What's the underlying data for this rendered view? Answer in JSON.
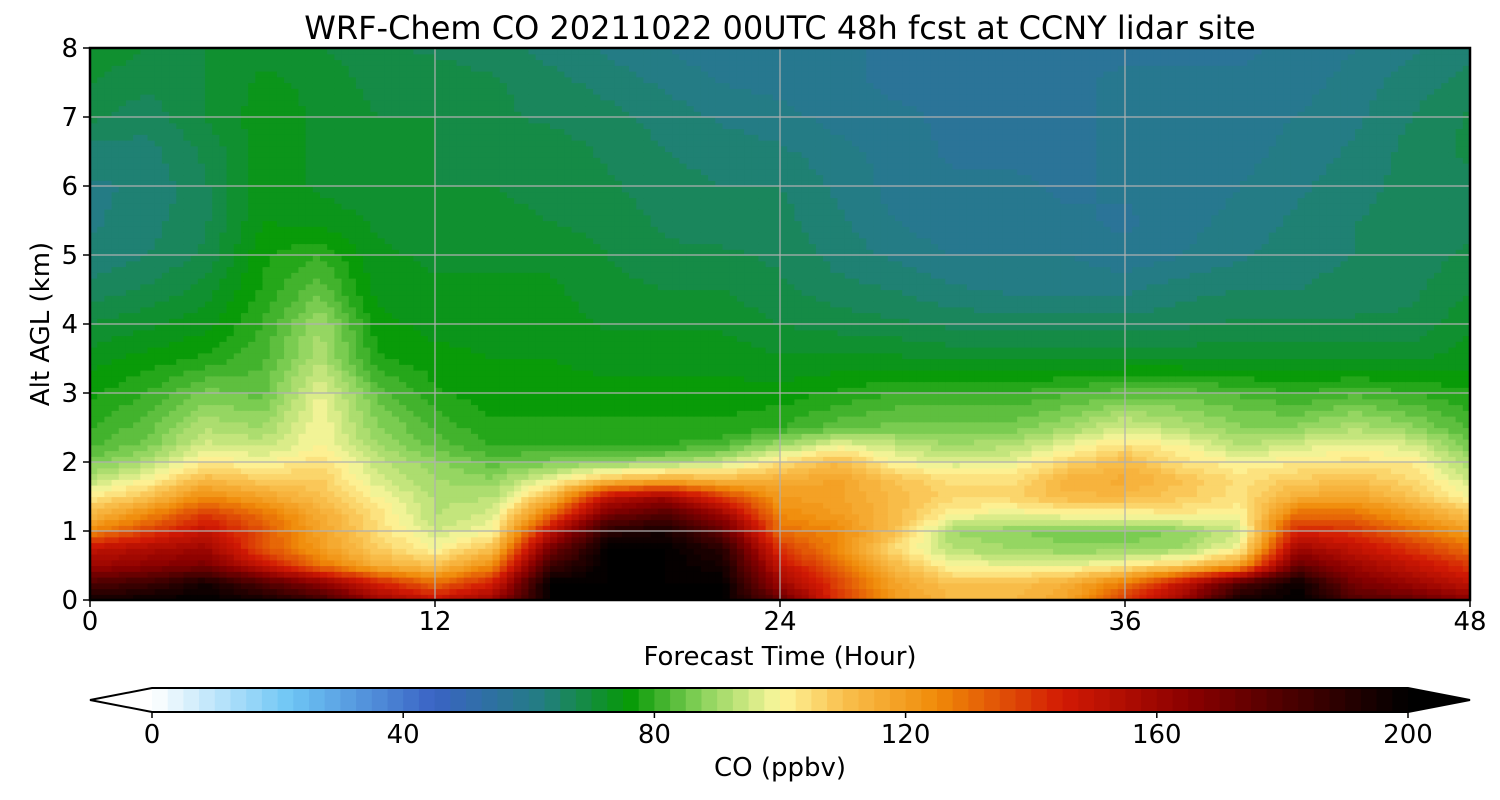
{
  "chart_data": {
    "type": "heatmap",
    "title": "WRF-Chem CO  20211022 00UTC 48h fcst at CCNY lidar site",
    "xlabel": "Forecast Time (Hour)",
    "ylabel": "Alt AGL (km)",
    "xlim": [
      0,
      48
    ],
    "ylim": [
      0,
      8
    ],
    "xticks": [
      0,
      12,
      24,
      36,
      48
    ],
    "yticks": [
      0,
      1,
      2,
      3,
      4,
      5,
      6,
      7,
      8
    ],
    "grid": true,
    "colorbar": {
      "label": "CO  (ppbv)",
      "min": 0,
      "max": 200,
      "ticks": [
        0,
        40,
        80,
        120,
        160,
        200
      ],
      "extend": "both",
      "orientation": "horizontal",
      "placement": "bottom",
      "color_stops": [
        {
          "value": 0,
          "color": "#ffffff"
        },
        {
          "value": 22,
          "color": "#6ec6f5"
        },
        {
          "value": 45,
          "color": "#3a63c4"
        },
        {
          "value": 62,
          "color": "#237d82"
        },
        {
          "value": 76,
          "color": "#069a06"
        },
        {
          "value": 88,
          "color": "#8ed45e"
        },
        {
          "value": 100,
          "color": "#fdf79c"
        },
        {
          "value": 110,
          "color": "#f9c04e"
        },
        {
          "value": 125,
          "color": "#f08a08"
        },
        {
          "value": 145,
          "color": "#d21a04"
        },
        {
          "value": 165,
          "color": "#8b0000"
        },
        {
          "value": 200,
          "color": "#000000"
        }
      ]
    },
    "grid_data": {
      "x": [
        0,
        2,
        4,
        6,
        8,
        10,
        12,
        14,
        16,
        18,
        20,
        22,
        24,
        26,
        28,
        30,
        32,
        34,
        36,
        38,
        40,
        42,
        44,
        46,
        48
      ],
      "y": [
        0,
        0.25,
        0.5,
        0.75,
        1,
        1.25,
        1.5,
        1.75,
        2,
        2.25,
        2.5,
        3,
        3.5,
        4,
        4.5,
        5,
        5.5,
        6,
        6.5,
        7,
        7.5,
        8
      ],
      "values": [
        [
          195,
          198,
          200,
          195,
          185,
          160,
          150,
          160,
          200,
          200,
          200,
          200,
          175,
          140,
          120,
          112,
          112,
          118,
          140,
          160,
          195,
          200,
          180,
          175,
          165
        ],
        [
          180,
          185,
          195,
          180,
          165,
          145,
          130,
          145,
          200,
          200,
          200,
          200,
          160,
          138,
          118,
          110,
          110,
          115,
          128,
          150,
          180,
          198,
          170,
          160,
          150
        ],
        [
          160,
          165,
          170,
          150,
          130,
          115,
          110,
          125,
          185,
          200,
          200,
          195,
          150,
          130,
          112,
          100,
          98,
          98,
          102,
          108,
          120,
          175,
          160,
          150,
          140
        ],
        [
          150,
          155,
          160,
          135,
          120,
          108,
          100,
          110,
          170,
          200,
          200,
          190,
          140,
          125,
          105,
          92,
          90,
          88,
          88,
          90,
          100,
          160,
          150,
          140,
          130
        ],
        [
          125,
          138,
          150,
          135,
          118,
          105,
          95,
          100,
          150,
          190,
          195,
          175,
          130,
          125,
          110,
          90,
          88,
          86,
          86,
          88,
          95,
          145,
          140,
          130,
          120
        ],
        [
          112,
          125,
          140,
          130,
          116,
          104,
          92,
          96,
          130,
          170,
          180,
          160,
          125,
          120,
          112,
          100,
          98,
          100,
          100,
          102,
          100,
          130,
          130,
          120,
          110
        ],
        [
          102,
          110,
          125,
          118,
          110,
          100,
          92,
          92,
          112,
          150,
          160,
          140,
          120,
          118,
          112,
          106,
          106,
          112,
          112,
          108,
          104,
          115,
          118,
          110,
          100
        ],
        [
          93,
          100,
          112,
          108,
          108,
          96,
          90,
          88,
          98,
          110,
          115,
          112,
          115,
          118,
          110,
          104,
          104,
          114,
          116,
          110,
          104,
          108,
          110,
          105,
          95
        ],
        [
          86,
          92,
          102,
          100,
          104,
          94,
          88,
          84,
          86,
          88,
          90,
          94,
          104,
          112,
          100,
          96,
          98,
          106,
          112,
          104,
          100,
          102,
          104,
          102,
          90
        ],
        [
          82,
          86,
          96,
          94,
          100,
          90,
          84,
          80,
          80,
          80,
          80,
          82,
          90,
          98,
          94,
          90,
          92,
          98,
          104,
          100,
          92,
          96,
          98,
          96,
          86
        ],
        [
          80,
          84,
          92,
          90,
          100,
          88,
          82,
          78,
          78,
          78,
          78,
          78,
          80,
          84,
          86,
          86,
          86,
          90,
          96,
          92,
          88,
          88,
          92,
          88,
          82
        ],
        [
          77,
          80,
          86,
          84,
          98,
          84,
          78,
          76,
          76,
          76,
          76,
          76,
          76,
          78,
          80,
          80,
          80,
          82,
          84,
          84,
          82,
          80,
          82,
          80,
          78
        ],
        [
          74,
          76,
          78,
          82,
          92,
          78,
          76,
          75,
          75,
          74,
          74,
          74,
          73,
          73,
          73,
          72,
          72,
          72,
          72,
          72,
          72,
          72,
          72,
          72,
          74
        ],
        [
          70,
          72,
          74,
          80,
          90,
          76,
          74,
          74,
          74,
          72,
          72,
          72,
          70,
          69,
          68,
          67,
          66,
          66,
          66,
          67,
          68,
          68,
          68,
          68,
          72
        ],
        [
          66,
          68,
          71,
          78,
          84,
          74,
          73,
          73,
          73,
          71,
          70,
          70,
          68,
          66,
          65,
          63,
          62,
          62,
          62,
          64,
          65,
          65,
          66,
          67,
          70
        ],
        [
          63,
          65,
          68,
          77,
          80,
          73,
          72,
          72,
          72,
          70,
          68,
          68,
          67,
          64,
          62,
          60,
          60,
          60,
          58,
          60,
          62,
          64,
          65,
          66,
          68
        ],
        [
          62,
          64,
          67,
          75,
          74,
          72,
          71,
          71,
          70,
          69,
          67,
          66,
          66,
          63,
          60,
          58,
          59,
          58,
          57,
          59,
          61,
          63,
          65,
          66,
          67
        ],
        [
          62,
          63,
          67,
          74,
          72,
          71,
          70,
          70,
          69,
          68,
          66,
          65,
          65,
          62,
          59,
          58,
          58,
          57,
          58,
          58,
          60,
          62,
          64,
          66,
          67
        ],
        [
          64,
          64,
          68,
          74,
          72,
          70,
          70,
          69,
          69,
          67,
          65,
          64,
          63,
          61,
          59,
          57,
          57,
          57,
          58,
          58,
          59,
          61,
          63,
          66,
          68
        ],
        [
          68,
          66,
          70,
          74,
          72,
          70,
          70,
          68,
          67,
          66,
          64,
          62,
          61,
          59,
          58,
          57,
          57,
          57,
          58,
          58,
          59,
          60,
          62,
          65,
          68
        ],
        [
          70,
          68,
          70,
          73,
          72,
          69,
          69,
          68,
          66,
          64,
          62,
          60,
          59,
          58,
          57,
          57,
          57,
          57,
          58,
          58,
          58,
          59,
          61,
          64,
          66
        ],
        [
          72,
          70,
          70,
          72,
          70,
          68,
          67,
          66,
          64,
          62,
          60,
          58,
          58,
          58,
          57,
          57,
          57,
          57,
          57,
          57,
          57,
          58,
          60,
          62,
          64
        ]
      ]
    }
  }
}
